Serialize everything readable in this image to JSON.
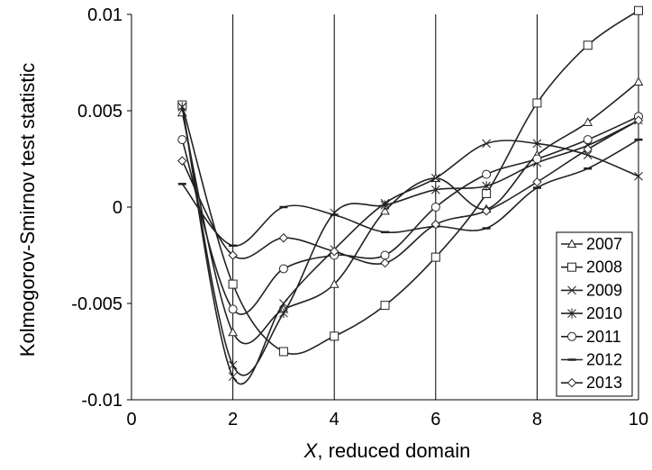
{
  "chart_data": {
    "type": "line",
    "title": "",
    "xlabel": "X, reduced domain",
    "xlabel_var": "X",
    "xlabel_rest": ", reduced domain",
    "ylabel": "Kolmogorov-Smirnov test statistic",
    "xlim": [
      0,
      10
    ],
    "ylim": [
      -0.01,
      0.01
    ],
    "x_ticks": [
      0,
      2,
      4,
      6,
      8,
      10
    ],
    "x_tick_labels": [
      "0",
      "2",
      "4",
      "6",
      "8",
      "10"
    ],
    "y_ticks": [
      -0.01,
      -0.005,
      0,
      0.005,
      0.01
    ],
    "y_tick_labels": [
      "-0.01",
      "-0.005",
      "0",
      "0.005",
      "0.01"
    ],
    "grid": "vertical",
    "legend_position": "right",
    "x": [
      1,
      2,
      3,
      4,
      5,
      6,
      7,
      8,
      9,
      10
    ],
    "series": [
      {
        "name": "2007",
        "marker": "triangle",
        "values": [
          0.0049,
          -0.0065,
          -0.0053,
          -0.004,
          -0.0002,
          0.0015,
          -0.0001,
          0.0027,
          0.0044,
          0.0065
        ]
      },
      {
        "name": "2008",
        "marker": "square",
        "values": [
          0.0053,
          -0.004,
          -0.0075,
          -0.0067,
          -0.0051,
          -0.0026,
          0.0007,
          0.0054,
          0.0084,
          0.0102
        ]
      },
      {
        "name": "2009",
        "marker": "x",
        "values": [
          0.0052,
          -0.0088,
          -0.005,
          -0.0022,
          0.0002,
          0.0015,
          0.0033,
          0.0033,
          0.0027,
          0.0016
        ]
      },
      {
        "name": "2010",
        "marker": "star",
        "values": [
          0.0052,
          -0.0082,
          -0.0055,
          -0.0003,
          0.0001,
          0.0009,
          0.0011,
          0.0023,
          0.0032,
          0.0045
        ]
      },
      {
        "name": "2011",
        "marker": "circle",
        "values": [
          0.0035,
          -0.0053,
          -0.0032,
          -0.0025,
          -0.0025,
          0.0,
          0.0017,
          0.0025,
          0.0035,
          0.0047
        ]
      },
      {
        "name": "2012",
        "marker": "dash",
        "values": [
          0.0012,
          -0.002,
          0.0,
          -0.0004,
          -0.0013,
          -0.001,
          -0.0011,
          0.001,
          0.002,
          0.0035
        ]
      },
      {
        "name": "2013",
        "marker": "diamond",
        "values": [
          0.0024,
          -0.0025,
          -0.0016,
          -0.0023,
          -0.0029,
          -0.0009,
          -0.0002,
          0.0013,
          0.003,
          0.0045
        ]
      }
    ]
  }
}
